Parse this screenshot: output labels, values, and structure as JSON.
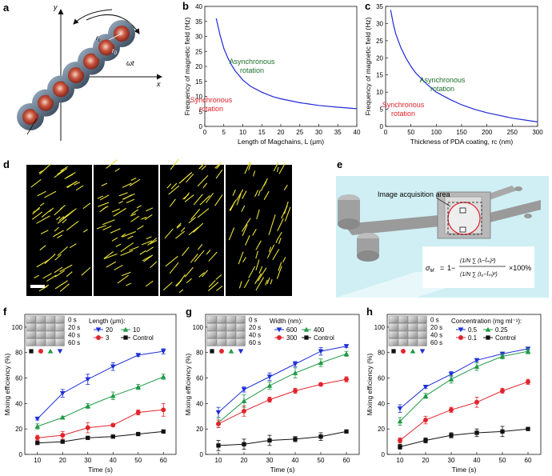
{
  "panel_letters": {
    "a": "a",
    "b": "b",
    "c": "c",
    "d": "d",
    "e": "e",
    "f": "f",
    "g": "g",
    "h": "h"
  },
  "panel_a": {
    "x_axis": "x",
    "y_axis": "y",
    "radius_label": "r",
    "radius_sub": "c",
    "core_label": "r",
    "core_sub": "0",
    "angle_label": "ωt"
  },
  "panel_e": {
    "area_label": "Image acquisition area",
    "eq_lhs": "σ",
    "eq_lhs_sub": "M",
    "eq_eq": "=",
    "eq_one": "1−",
    "eq_top": "(1/N ∑ (Iᵢ−Īₘ)²)",
    "eq_bottom": "(1/N ∑ (I₀−Īₘ)²)",
    "eq_tail": "×100%"
  },
  "colors": {
    "curve_blue": "#1f2ad6",
    "async_green": "#1d6f2c",
    "sync_red": "#e0242c",
    "s20": "#1d2fd6",
    "s10": "#1f9a46",
    "s3": "#e2242c",
    "sctrl": "#111111",
    "fluid": "#cfeff4"
  },
  "chart_data": [
    {
      "id": "b",
      "type": "line",
      "xlabel": "Length of Magchains, L (μm)",
      "ylabel": "Frequency of magnetic field (Hz)",
      "xlim": [
        0,
        40
      ],
      "ylim": [
        0,
        40
      ],
      "xticks": [
        0,
        5,
        10,
        15,
        20,
        25,
        30,
        35,
        40
      ],
      "yticks": [
        0,
        5,
        10,
        15,
        20,
        25,
        30,
        35,
        40
      ],
      "x": [
        3,
        4,
        5,
        6,
        7,
        8,
        10,
        12,
        15,
        18,
        20,
        25,
        30,
        35,
        40
      ],
      "y": [
        36,
        30.5,
        26,
        23,
        20.5,
        18.5,
        15.5,
        13.4,
        11.4,
        9.9,
        9.2,
        7.9,
        7.0,
        6.4,
        5.9
      ],
      "annotations": [
        {
          "text": "Asynchronous\nrotation",
          "color": "#1d6f2c"
        },
        {
          "text": "Synchronous\nrotation",
          "color": "#e0242c"
        }
      ]
    },
    {
      "id": "c",
      "type": "line",
      "xlabel": "Thickness of PDA coating, rc (nm)",
      "ylabel": "Frequency of magnetic field (Hz)",
      "xlim": [
        0,
        300
      ],
      "ylim": [
        0,
        35
      ],
      "xticks": [
        0,
        50,
        100,
        150,
        200,
        250,
        300
      ],
      "yticks": [
        0,
        5,
        10,
        15,
        20,
        25,
        30,
        35
      ],
      "x": [
        10,
        15,
        20,
        30,
        40,
        50,
        60,
        80,
        100,
        125,
        150,
        175,
        200,
        250,
        300
      ],
      "y": [
        34,
        30,
        27,
        23,
        20,
        17.5,
        15.5,
        12.5,
        10,
        8,
        6.3,
        5.0,
        4.0,
        2.4,
        1.3
      ],
      "annotations": [
        {
          "text": "Asynchronous\nrotation",
          "color": "#1d6f2c"
        },
        {
          "text": "Synchronous\nrotation",
          "color": "#e0242c"
        }
      ]
    },
    {
      "id": "f",
      "type": "line",
      "xlabel": "Time (s)",
      "ylabel": "Mixing efficiency (%)",
      "xlim": [
        5,
        65
      ],
      "ylim": [
        0,
        110
      ],
      "xticks": [
        10,
        20,
        30,
        40,
        50,
        60
      ],
      "yticks": [
        0,
        20,
        40,
        60,
        80,
        100
      ],
      "legend_title": "Length (μm):",
      "categories": [
        10,
        20,
        30,
        40,
        50,
        60
      ],
      "series": [
        {
          "name": "20",
          "marker": "tri-down",
          "color": "#1d2fd6",
          "values": [
            28,
            48,
            59,
            69,
            78,
            81
          ],
          "err": [
            1,
            3,
            4,
            3,
            1,
            2
          ]
        },
        {
          "name": "10",
          "marker": "tri-up",
          "color": "#1f9a46",
          "values": [
            22,
            29,
            38,
            46,
            53,
            61
          ],
          "err": [
            2,
            1,
            2,
            3,
            2,
            2
          ]
        },
        {
          "name": "3",
          "marker": "circle",
          "color": "#e2242c",
          "values": [
            13,
            15,
            21,
            23,
            33,
            35
          ],
          "err": [
            2,
            3,
            4,
            1,
            2,
            5
          ]
        },
        {
          "name": "Control",
          "marker": "square",
          "color": "#111111",
          "values": [
            9,
            10,
            13,
            14,
            16,
            18
          ],
          "err": [
            1,
            1,
            1,
            1,
            1,
            1
          ]
        }
      ],
      "inset_times": [
        "0 s",
        "20 s",
        "40 s",
        "60 s"
      ]
    },
    {
      "id": "g",
      "type": "line",
      "xlabel": "Time (s)",
      "ylabel": "Mixing efficiency (%)",
      "xlim": [
        5,
        65
      ],
      "ylim": [
        0,
        110
      ],
      "xticks": [
        10,
        20,
        30,
        40,
        50,
        60
      ],
      "yticks": [
        0,
        20,
        40,
        60,
        80,
        100
      ],
      "legend_title": "Width (nm):",
      "categories": [
        10,
        20,
        30,
        40,
        50,
        60
      ],
      "series": [
        {
          "name": "600",
          "marker": "tri-down",
          "color": "#1d2fd6",
          "values": [
            33,
            51,
            61,
            71,
            81,
            85
          ],
          "err": [
            4,
            2,
            3,
            2,
            3,
            1
          ]
        },
        {
          "name": "400",
          "marker": "tri-up",
          "color": "#1f9a46",
          "values": [
            25,
            42,
            54,
            64,
            72,
            79
          ],
          "err": [
            4,
            5,
            3,
            4,
            3,
            2
          ]
        },
        {
          "name": "300",
          "marker": "circle",
          "color": "#e2242c",
          "values": [
            24,
            34,
            43,
            50,
            55,
            59
          ],
          "err": [
            3,
            4,
            2,
            2,
            1,
            2
          ]
        },
        {
          "name": "Control",
          "marker": "square",
          "color": "#111111",
          "values": [
            7,
            8,
            11,
            12,
            14,
            18
          ],
          "err": [
            4,
            4,
            4,
            2,
            3,
            1
          ]
        }
      ],
      "inset_times": [
        "0 s",
        "20 s",
        "40 s",
        "60 s"
      ]
    },
    {
      "id": "h",
      "type": "line",
      "xlabel": "Time (s)",
      "ylabel": "Mixing efficiency (%)",
      "xlim": [
        5,
        65
      ],
      "ylim": [
        0,
        110
      ],
      "xticks": [
        10,
        20,
        30,
        40,
        50,
        60
      ],
      "yticks": [
        0,
        20,
        40,
        60,
        80,
        100
      ],
      "legend_title": "Concentration (mg ml⁻¹):",
      "categories": [
        10,
        20,
        30,
        40,
        50,
        60
      ],
      "series": [
        {
          "name": "0.5",
          "marker": "tri-down",
          "color": "#1d2fd6",
          "values": [
            36,
            53,
            63,
            74,
            79,
            83
          ],
          "err": [
            3,
            1,
            2,
            1,
            1,
            1
          ]
        },
        {
          "name": "0.25",
          "marker": "tri-up",
          "color": "#1f9a46",
          "values": [
            26,
            46,
            59,
            69,
            77,
            81
          ],
          "err": [
            3,
            2,
            3,
            3,
            2,
            2
          ]
        },
        {
          "name": "0.1",
          "marker": "circle",
          "color": "#e2242c",
          "values": [
            11,
            27,
            35,
            41,
            50,
            57
          ],
          "err": [
            2,
            3,
            2,
            4,
            2,
            2
          ]
        },
        {
          "name": "Control",
          "marker": "square",
          "color": "#111111",
          "values": [
            6,
            11,
            15,
            17,
            18,
            20
          ],
          "err": [
            2,
            2,
            2,
            3,
            4,
            1
          ]
        }
      ],
      "inset_times": [
        "0 s",
        "20 s",
        "40 s",
        "60 s"
      ]
    }
  ]
}
